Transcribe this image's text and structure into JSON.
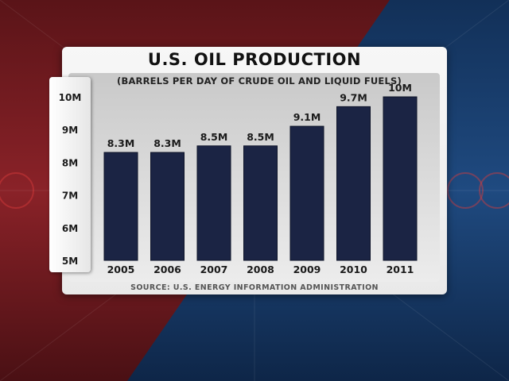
{
  "colors": {
    "bar": "#1b2444",
    "background_left": "#7a1c22",
    "background_right": "#1c3a66"
  },
  "chart_data": {
    "type": "bar",
    "title": "U.S. OIL PRODUCTION",
    "subtitle": "(BARRELS PER DAY OF CRUDE OIL AND LIQUID FUELS)",
    "source": "SOURCE: U.S. ENERGY INFORMATION ADMINISTRATION",
    "xlabel": "",
    "ylabel": "",
    "ylim": [
      5,
      10
    ],
    "yticks": [
      {
        "value": 10,
        "label": "10M"
      },
      {
        "value": 9,
        "label": "9M"
      },
      {
        "value": 8,
        "label": "8M"
      },
      {
        "value": 7,
        "label": "7M"
      },
      {
        "value": 6,
        "label": "6M"
      },
      {
        "value": 5,
        "label": "5M"
      }
    ],
    "grid": false,
    "categories": [
      "2005",
      "2006",
      "2007",
      "2008",
      "2009",
      "2010",
      "2011"
    ],
    "values": [
      8.3,
      8.3,
      8.5,
      8.5,
      9.1,
      9.7,
      10
    ],
    "data_labels": [
      "8.3M",
      "8.3M",
      "8.5M",
      "8.5M",
      "9.1M",
      "9.7M",
      "10M"
    ]
  }
}
